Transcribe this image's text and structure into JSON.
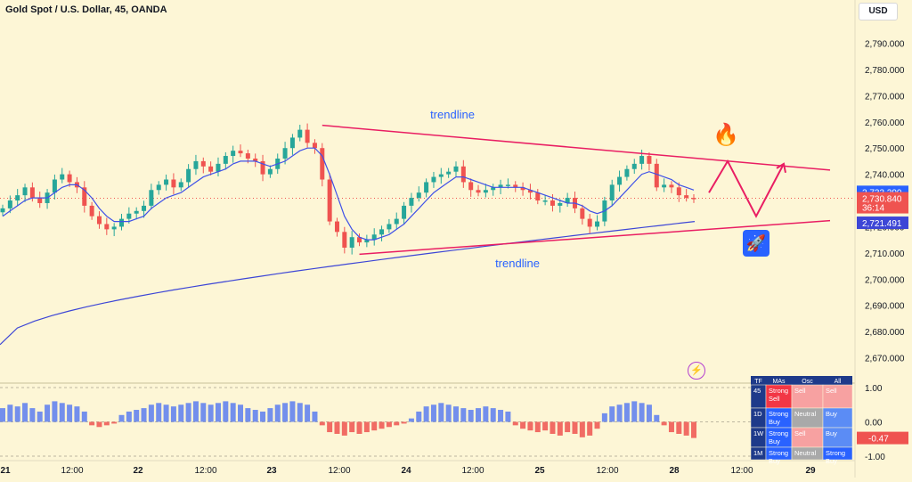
{
  "header": {
    "title": "Gold Spot / U.S. Dollar, 45, OANDA",
    "currency": "USD"
  },
  "colors": {
    "bull": "#26a69a",
    "bear": "#ef5350",
    "ma_fast": "#3f51e8",
    "ma_slow": "#3d46d6",
    "trendline": "#e91e63",
    "osc_pos": "#5b7cf0",
    "osc_neg": "#ef5350"
  },
  "annotations": {
    "upper_label": "trendline",
    "lower_label": "trendline",
    "fire_icon": "fire-icon",
    "rocket_icon": "rocket-icon",
    "bolt_icon": "lightning-icon"
  },
  "chart_data": {
    "type": "candlestick",
    "y_range": [
      2662,
      2797
    ],
    "y_ticks": [
      "2,790.000",
      "2,780.000",
      "2,770.000",
      "2,760.000",
      "2,750.000",
      "2,740.000",
      "2,730.000",
      "2,720.000",
      "2,710.000",
      "2,700.000",
      "2,690.000",
      "2,680.000",
      "2,670.000"
    ],
    "x_ticks": [
      "21",
      "12:00",
      "22",
      "12:00",
      "23",
      "12:00",
      "24",
      "12:00",
      "25",
      "12:00",
      "28",
      "12:00",
      "29"
    ],
    "price_labels": [
      {
        "value": 2733.29,
        "text": "2,733.290",
        "color": "#2962ff"
      },
      {
        "value": 2730.84,
        "text": "2,730.840",
        "countdown": "36:14",
        "color": "#ef5350"
      },
      {
        "value": 2721.491,
        "text": "2,721.491",
        "color": "#3d46d6"
      }
    ],
    "current_price": 2730.84,
    "closes": [
      2727,
      2730,
      2732,
      2735,
      2731,
      2729,
      2733,
      2738,
      2740,
      2737,
      2735,
      2728,
      2724,
      2721,
      2719,
      2720,
      2723,
      2725,
      2726,
      2728,
      2734,
      2736,
      2738,
      2735,
      2737,
      2742,
      2745,
      2743,
      2741,
      2744,
      2747,
      2749,
      2748,
      2746,
      2745,
      2740,
      2742,
      2746,
      2750,
      2754,
      2757,
      2752,
      2750,
      2738,
      2722,
      2718,
      2712,
      2716,
      2714,
      2715,
      2717,
      2719,
      2721,
      2723,
      2728,
      2731,
      2733,
      2737,
      2739,
      2740,
      2741,
      2743,
      2737,
      2734,
      2733,
      2734,
      2735,
      2736,
      2736,
      2735,
      2734,
      2733,
      2730,
      2730,
      2728,
      2729,
      2731,
      2727,
      2723,
      2720,
      2722,
      2730,
      2736,
      2739,
      2742,
      2744,
      2747,
      2744,
      2735,
      2736,
      2735,
      2732,
      2731,
      2730.84
    ],
    "ma_fast": [
      2724,
      2726,
      2728,
      2730,
      2731,
      2731,
      2731,
      2733,
      2735,
      2736,
      2736,
      2734,
      2731,
      2727,
      2724,
      2722,
      2722,
      2722,
      2723,
      2724,
      2727,
      2729,
      2731,
      2732,
      2733,
      2735,
      2737,
      2739,
      2740,
      2741,
      2742,
      2744,
      2745,
      2745,
      2745,
      2744,
      2743,
      2744,
      2745,
      2747,
      2749,
      2750,
      2750,
      2747,
      2740,
      2732,
      2724,
      2719,
      2716,
      2715,
      2715,
      2716,
      2717,
      2719,
      2721,
      2724,
      2727,
      2730,
      2733,
      2735,
      2737,
      2739,
      2739,
      2738,
      2737,
      2736,
      2735,
      2735,
      2735,
      2735,
      2735,
      2734,
      2733,
      2732,
      2731,
      2730,
      2729,
      2729,
      2728,
      2726,
      2725,
      2726,
      2728,
      2731,
      2734,
      2737,
      2740,
      2741,
      2740,
      2739,
      2738,
      2736,
      2735,
      2734
    ],
    "ma_slow": {
      "start": 2675,
      "end": 2722
    },
    "trendlines": [
      {
        "label": "trendline",
        "from": {
          "bar": 43,
          "price": 2758.7
        },
        "to": {
          "x_end": "2025-10-29 00:00",
          "price": 2741.6
        }
      },
      {
        "label": "trendline",
        "from": {
          "bar": 48,
          "price": 2709.5
        },
        "to": {
          "x_end": "2025-10-29 00:00",
          "price": 2722.3
        }
      }
    ],
    "projection": [
      2733,
      2745,
      2724,
      2744
    ],
    "oscillator": {
      "levels": [
        "1.00",
        "0.00",
        "-1.00"
      ],
      "current_label": "-0.47",
      "current_value": -0.47,
      "values": [
        0.4,
        0.5,
        0.45,
        0.55,
        0.4,
        0.3,
        0.5,
        0.6,
        0.55,
        0.5,
        0.45,
        0.3,
        -0.1,
        -0.15,
        -0.1,
        -0.05,
        0.2,
        0.3,
        0.35,
        0.4,
        0.5,
        0.55,
        0.5,
        0.45,
        0.5,
        0.55,
        0.6,
        0.55,
        0.5,
        0.55,
        0.6,
        0.55,
        0.5,
        0.4,
        0.35,
        0.3,
        0.4,
        0.5,
        0.55,
        0.6,
        0.55,
        0.5,
        0.3,
        -0.1,
        -0.3,
        -0.35,
        -0.4,
        -0.3,
        -0.35,
        -0.3,
        -0.25,
        -0.2,
        -0.15,
        -0.1,
        -0.05,
        0.1,
        0.3,
        0.45,
        0.5,
        0.55,
        0.5,
        0.45,
        0.4,
        0.35,
        0.4,
        0.45,
        0.4,
        0.35,
        0.3,
        -0.1,
        -0.2,
        -0.25,
        -0.3,
        -0.25,
        -0.35,
        -0.4,
        -0.3,
        -0.35,
        -0.45,
        -0.4,
        -0.2,
        0.25,
        0.45,
        0.5,
        0.55,
        0.6,
        0.55,
        0.5,
        0.2,
        -0.1,
        -0.3,
        -0.35,
        -0.4,
        -0.47
      ]
    },
    "technicals_table": {
      "columns": [
        "TF",
        "MAs",
        "Osc",
        "All"
      ],
      "rows": [
        {
          "tf": "45",
          "mas": "Strong Sell",
          "osc": "Sell",
          "all": "Sell"
        },
        {
          "tf": "1D",
          "mas": "Strong Buy",
          "osc": "Neutral",
          "all": "Buy"
        },
        {
          "tf": "1W",
          "mas": "Strong Buy",
          "osc": "Sell",
          "all": "Buy"
        },
        {
          "tf": "1M",
          "mas": "Strong Buy",
          "osc": "Neutral",
          "all": "Strong Buy"
        }
      ]
    }
  }
}
